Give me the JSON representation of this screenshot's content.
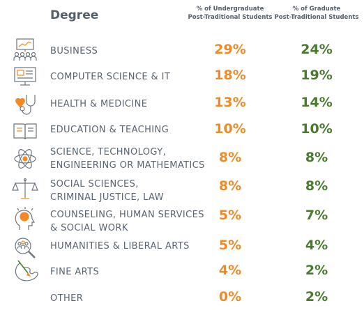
{
  "header": {
    "degree": "Degree",
    "undergrad": [
      "% of Undergraduate",
      "Post-Traditional Students"
    ],
    "graduate": [
      "% of Graduate",
      "Post-Traditional Students"
    ]
  },
  "colors": {
    "undergrad": "#ef8a27",
    "graduate": "#4a7a30",
    "text": "#5a6470",
    "icon_line": "#6d7680",
    "icon_accent": "#ef8a27"
  },
  "rows": [
    {
      "icon": "presentation-board-icon",
      "label": [
        "BUSINESS"
      ],
      "undergrad": "29%",
      "graduate": "24%"
    },
    {
      "icon": "computer-monitor-icon",
      "label": [
        "COMPUTER SCIENCE & IT"
      ],
      "undergrad": "18%",
      "graduate": "19%"
    },
    {
      "icon": "stethoscope-heart-icon",
      "label": [
        "HEALTH & MEDICINE"
      ],
      "undergrad": "13%",
      "graduate": "14%"
    },
    {
      "icon": "open-book-icon",
      "label": [
        "EDUCATION & TEACHING"
      ],
      "undergrad": "10%",
      "graduate": "10%"
    },
    {
      "icon": "atom-icon",
      "label": [
        "SCIENCE, TECHNOLOGY,",
        "ENGINEERING OR MATHEMATICS"
      ],
      "undergrad": "8%",
      "graduate": "8%"
    },
    {
      "icon": "scales-of-justice-icon",
      "label": [
        "SOCIAL SCIENCES,",
        "CRIMINAL JUSTICE, LAW"
      ],
      "undergrad": "8%",
      "graduate": "8%"
    },
    {
      "icon": "head-brain-icon",
      "label": [
        "COUNSELING, HUMAN SERVICES",
        "& SOCIAL WORK"
      ],
      "undergrad": "5%",
      "graduate": "7%"
    },
    {
      "icon": "people-magnifier-icon",
      "label": [
        "HUMANITIES & LIBERAL ARTS"
      ],
      "undergrad": "5%",
      "graduate": "4%"
    },
    {
      "icon": "paint-palette-icon",
      "label": [
        "FINE ARTS"
      ],
      "undergrad": "4%",
      "graduate": "2%"
    },
    {
      "icon": "",
      "label": [
        "OTHER"
      ],
      "undergrad": "0%",
      "graduate": "2%"
    }
  ]
}
